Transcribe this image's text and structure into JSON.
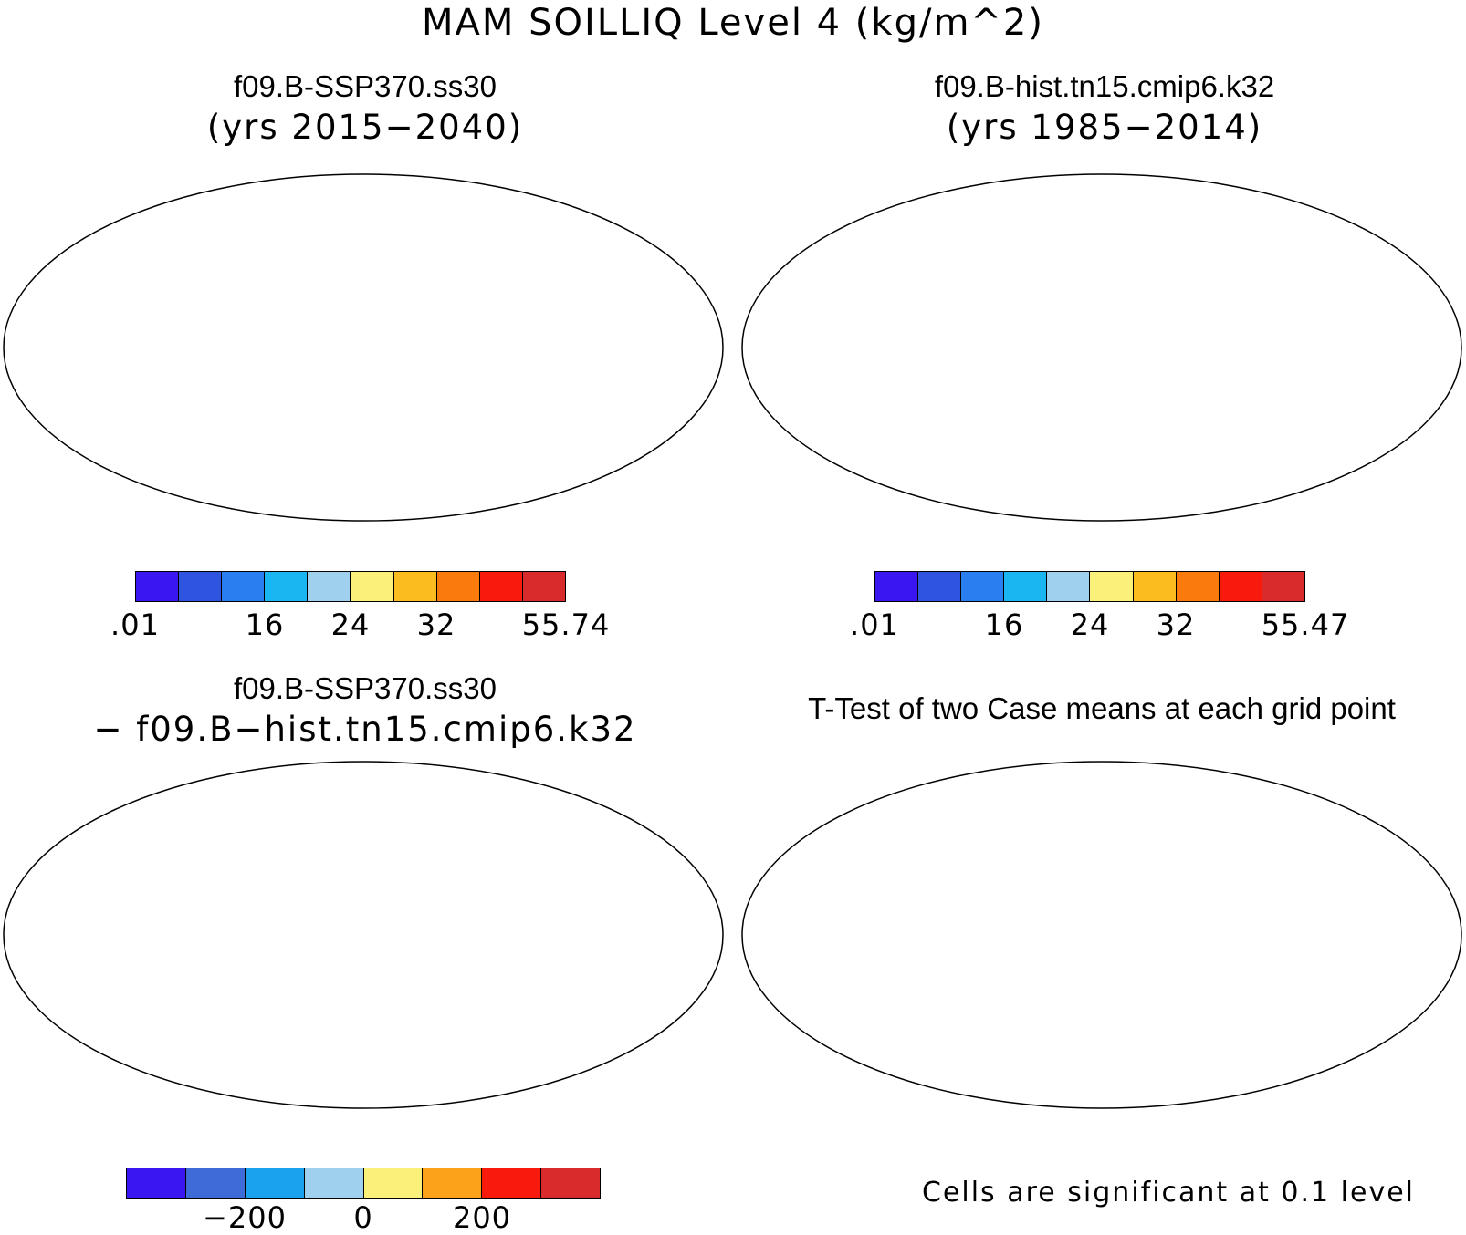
{
  "figure": {
    "main_title": "MAM SOILLIQ Level 4 (kg/m^2)"
  },
  "panels": {
    "top_left": {
      "case_name": "f09.B-SSP370.ss30",
      "years": "(yrs 2015−2040)",
      "colorbar_labels": [
        ".01",
        "16",
        "24",
        "32",
        "55.74"
      ]
    },
    "top_right": {
      "case_name": "f09.B-hist.tn15.cmip6.k32",
      "years": "(yrs 1985−2014)",
      "colorbar_labels": [
        ".01",
        "16",
        "24",
        "32",
        "55.47"
      ]
    },
    "bottom_left": {
      "case_name": "f09.B-SSP370.ss30",
      "minus_line": "− f09.B−hist.tn15.cmip6.k32",
      "colorbar_labels": [
        "−200",
        "0",
        "200"
      ]
    },
    "bottom_right": {
      "title": "T-Test of two Case means at each grid point",
      "note": "Cells are significant at 0.1 level"
    }
  },
  "colors": {
    "abs_scale": [
      "#3a17f0",
      "#2f55e0",
      "#2b7ef0",
      "#19b6f2",
      "#9fd1ee",
      "#fbf07a",
      "#fbbc1f",
      "#fb7a0c",
      "#f81a0c",
      "#d92b2b"
    ],
    "diff_scale": [
      "#3a17f0",
      "#3d6bd8",
      "#1ba2ee",
      "#9fd1ee",
      "#fbf07a",
      "#fba21a",
      "#f81a0c",
      "#d92b2b"
    ],
    "significant": "#f00000"
  },
  "map_data": {
    "projection": "Robinson",
    "panel_types": [
      "filled-contour",
      "filled-contour",
      "filled-contour-difference",
      "significance-mask"
    ]
  }
}
